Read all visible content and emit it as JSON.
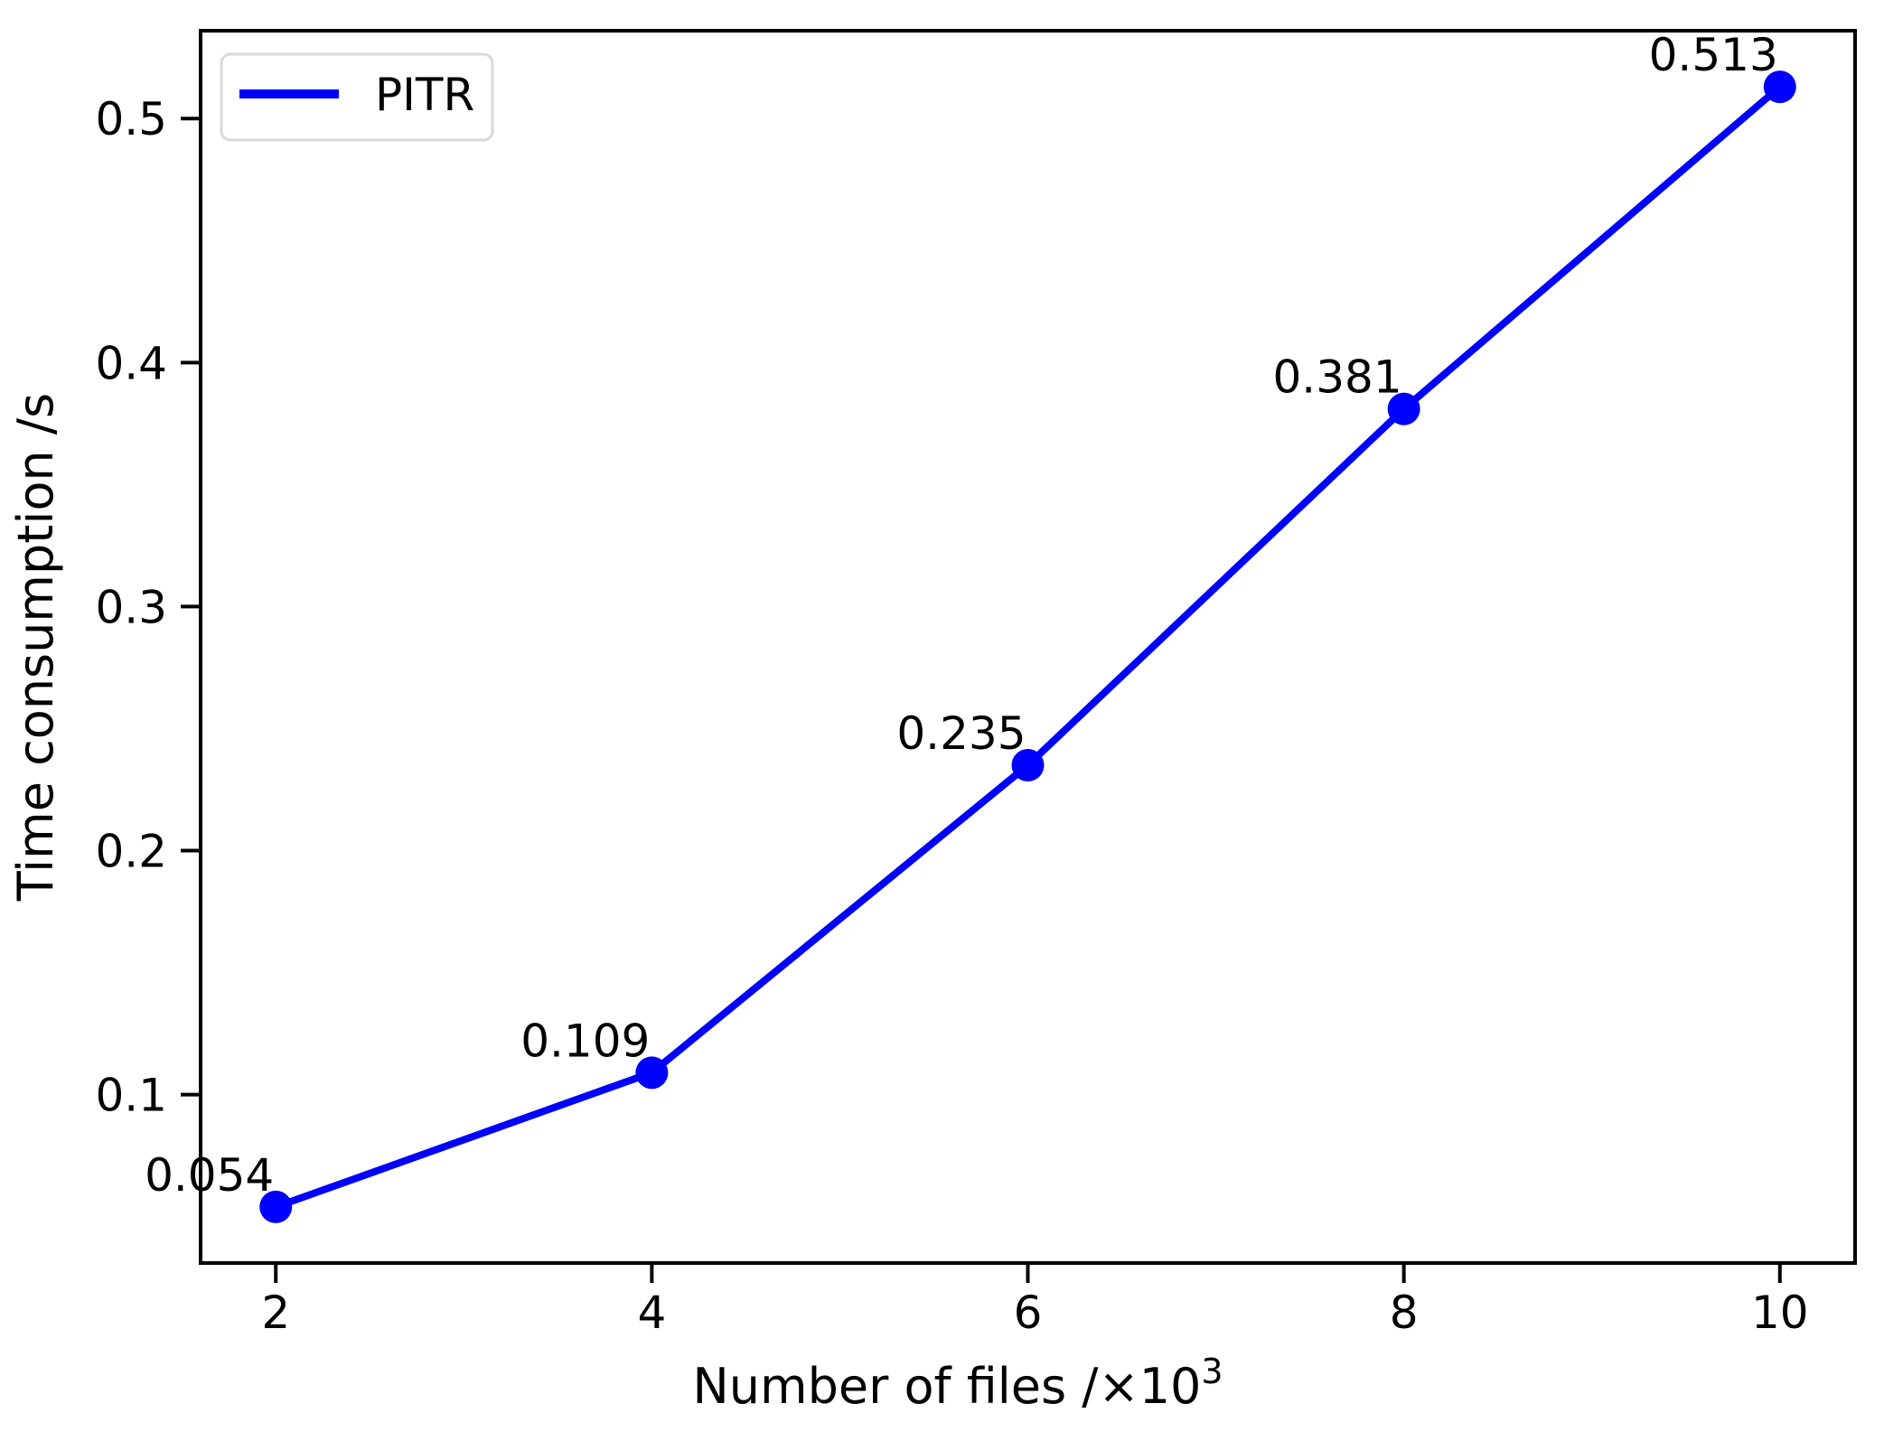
{
  "chart_data": {
    "type": "line",
    "title": "",
    "xlabel": "Number of files /×10³",
    "xlabel_main": "Number of files /×",
    "xlabel_base": "10",
    "xlabel_sup": "3",
    "ylabel": "Time consumption /s",
    "categories": [
      2,
      4,
      6,
      8,
      10
    ],
    "series": [
      {
        "name": "PITR",
        "x": [
          2,
          4,
          6,
          8,
          10
        ],
        "values": [
          0.054,
          0.109,
          0.235,
          0.381,
          0.513
        ],
        "point_labels": [
          "0.054",
          "0.109",
          "0.235",
          "0.381",
          "0.513"
        ],
        "color": "#0000ff"
      }
    ],
    "x_ticks": [
      2,
      4,
      6,
      8,
      10
    ],
    "x_tick_labels": [
      "2",
      "4",
      "6",
      "8",
      "10"
    ],
    "y_ticks": [
      0.1,
      0.2,
      0.3,
      0.4,
      0.5
    ],
    "y_tick_labels": [
      "0.1",
      "0.2",
      "0.3",
      "0.4",
      "0.5"
    ],
    "xlim": [
      1.6,
      10.4
    ],
    "ylim": [
      0.031,
      0.536
    ],
    "grid": false,
    "legend_position": "upper left",
    "legend": [
      "PITR"
    ],
    "marker": "circle",
    "line_width": 8,
    "marker_radius": 18
  },
  "colors": {
    "line": "#0000ff",
    "axis": "#000000",
    "text": "#000000",
    "legend_border": "#d9d9d9",
    "background": "#ffffff"
  }
}
